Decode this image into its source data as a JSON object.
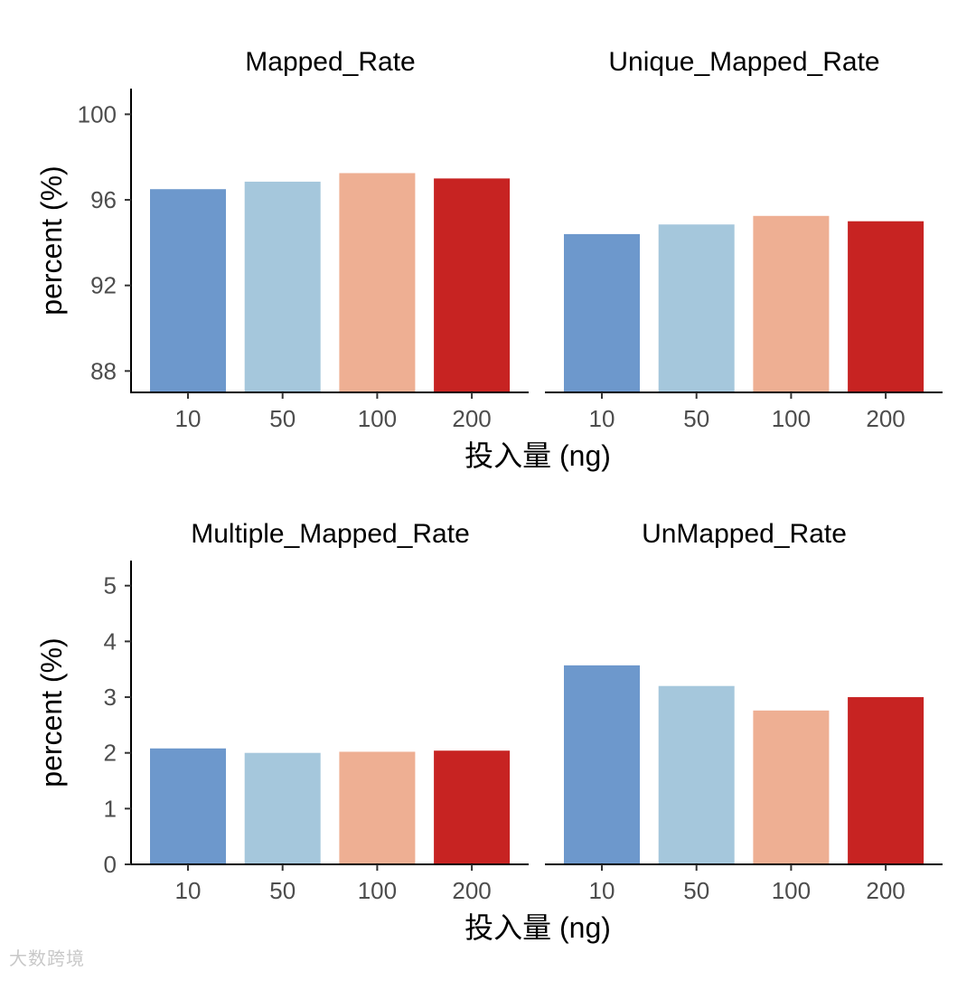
{
  "chart_data": {
    "type": "bar",
    "facet_layout": "2x2 grid",
    "categories": [
      "10",
      "50",
      "100",
      "200"
    ],
    "colors": [
      "#6D98CC",
      "#A5C7DC",
      "#EEAF93",
      "#C72322"
    ],
    "rows": [
      {
        "ylabel": "percent (%)",
        "xlabel": "投入量 (ng)",
        "ylim": [
          87.0,
          101.2
        ],
        "yticks": [
          88,
          92,
          96,
          100
        ],
        "panels": [
          {
            "title": "Mapped_Rate",
            "values": [
              96.5,
              96.85,
              97.25,
              97.0
            ]
          },
          {
            "title": "Unique_Mapped_Rate",
            "values": [
              94.4,
              94.85,
              95.25,
              95.0
            ]
          }
        ]
      },
      {
        "ylabel": "percent (%)",
        "xlabel": "投入量 (ng)",
        "ylim": [
          0,
          5.45
        ],
        "yticks": [
          0,
          1,
          2,
          3,
          4,
          5
        ],
        "panels": [
          {
            "title": "Multiple_Mapped_Rate",
            "values": [
              2.08,
              2.0,
              2.02,
              2.04
            ]
          },
          {
            "title": "UnMapped_Rate",
            "values": [
              3.57,
              3.2,
              2.76,
              3.0
            ]
          }
        ]
      }
    ]
  },
  "watermark": "大数跨境"
}
